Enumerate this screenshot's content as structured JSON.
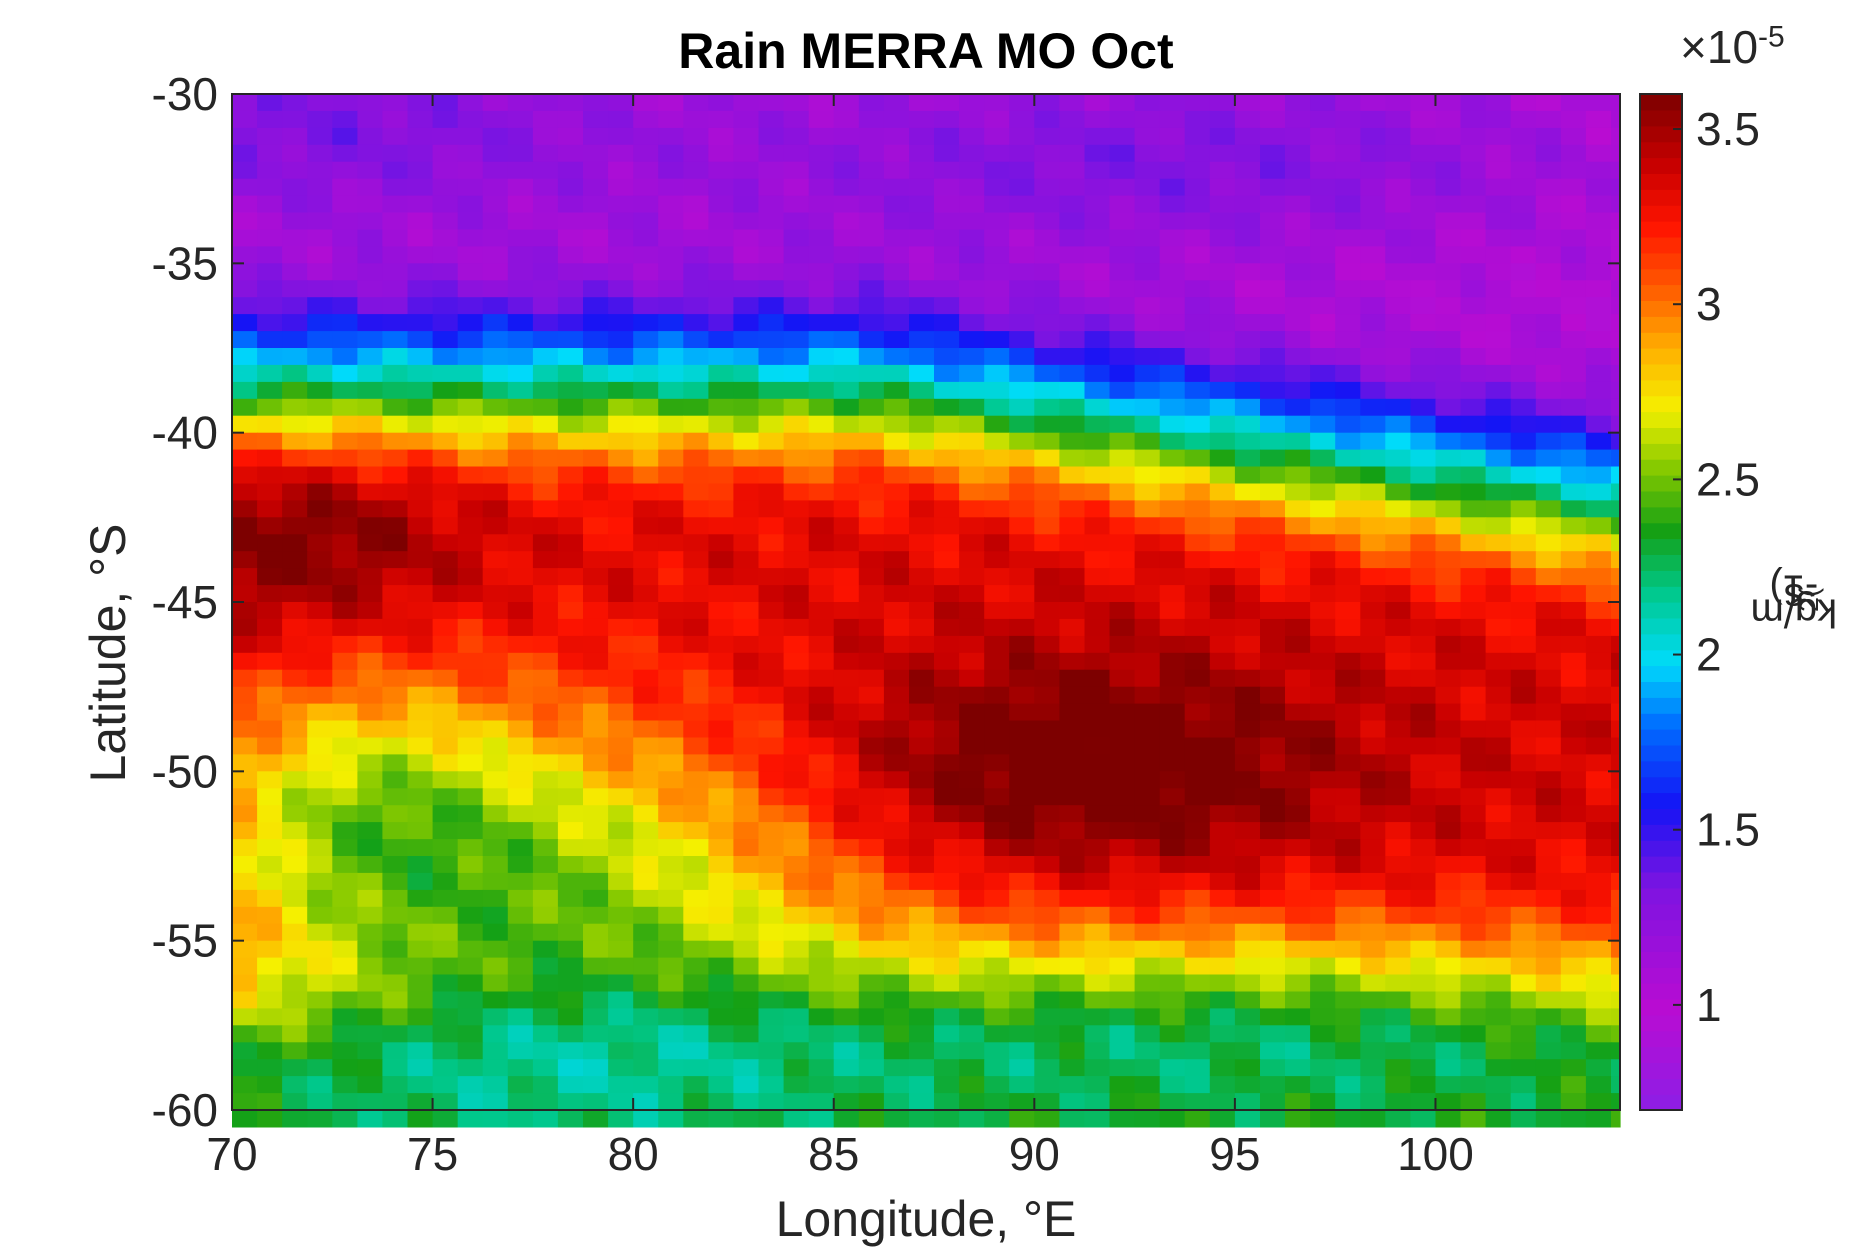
{
  "chart_data": {
    "type": "heatmap",
    "title": "Rain MERRA MO Oct",
    "xlabel": "Longitude, °E",
    "ylabel": "Latitude, °S",
    "colorbar_label": {
      "base": "kg/m",
      "sup1": "2",
      "mid": "s",
      "sup2": "(",
      "tail": "-1)"
    },
    "colorbar_exponent": {
      "prefix": "×10",
      "exp": "-5"
    },
    "xlim": [
      70,
      104.6
    ],
    "ylim": [
      -60,
      -30
    ],
    "xticks": [
      70,
      75,
      80,
      85,
      90,
      95,
      100
    ],
    "xtick_labels": [
      "70",
      "75",
      "80",
      "85",
      "90",
      "95",
      "100"
    ],
    "yticks": [
      -30,
      -35,
      -40,
      -45,
      -50,
      -55,
      -60
    ],
    "ytick_labels": [
      "-30",
      "-35",
      "-40",
      "-45",
      "-50",
      "-55",
      "-60"
    ],
    "clim": [
      0.7,
      3.6
    ],
    "cticks": [
      1,
      1.5,
      2,
      2.5,
      3,
      3.5
    ],
    "ctick_labels": [
      "1",
      "1.5",
      "2",
      "2.5",
      "3",
      "3.5"
    ],
    "colormap": "jet-purple",
    "grid": false,
    "units": "x10^-5 kg/m^2/s",
    "field_description": "Mean October rainfall; low values (~0.9-1.4) north of -36°S, rain band ~1.5-2.4 near -36 to -39°S (shifting south toward -41°S in the east), maximum ~3.2-3.5 between -41 and -52°S with peaks near 71°E,-43°S and 91°E,-50°S, decreasing to ~2.5-2.8 over 75-83°E,-50 to -56°S and ~2.0-2.4 near -59°S",
    "grid_resolution": {
      "lon": 0.625,
      "lat": 0.5
    }
  }
}
